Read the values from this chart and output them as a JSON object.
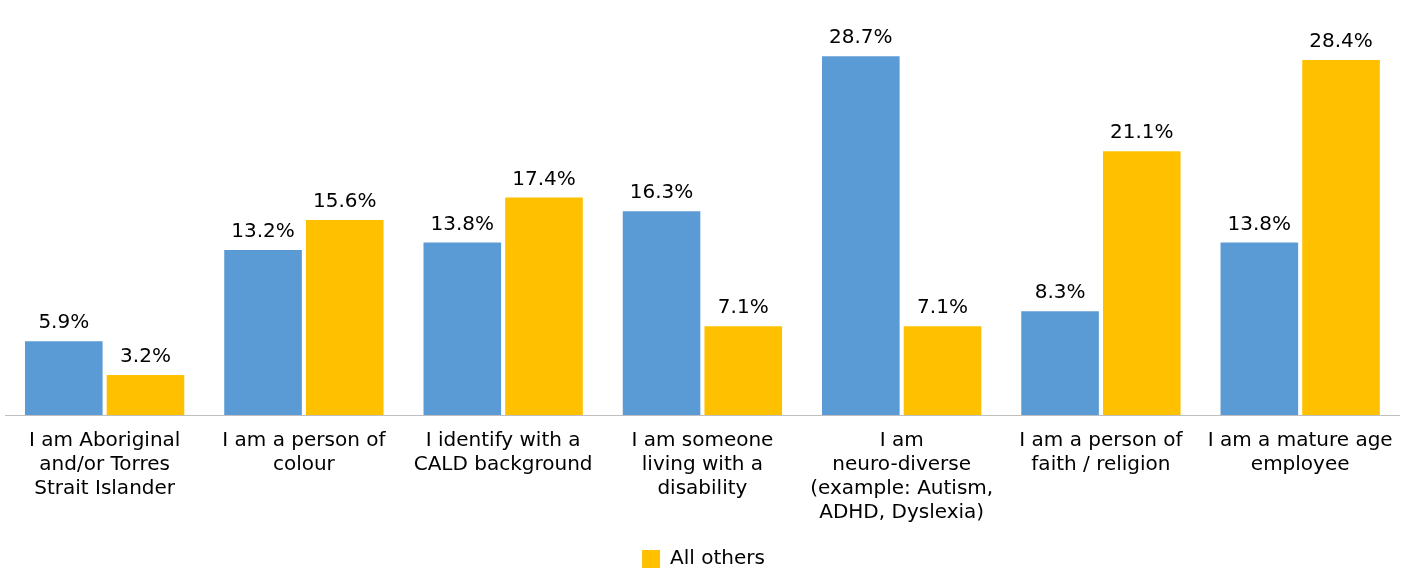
{
  "chart_data": {
    "type": "bar",
    "categories": [
      "I am Aboriginal and/or Torres Strait Islander",
      "I am a person of colour",
      "I identify with a CALD background",
      "I am someone living with a disability",
      "I am neuro-diverse (example: Autism, ADHD, Dyslexia)",
      "I am a person of faith / religion",
      "I am a mature age employee"
    ],
    "series": [
      {
        "color": "#5b9bd5",
        "values": [
          5.9,
          13.2,
          13.8,
          16.3,
          28.7,
          8.3,
          13.8
        ],
        "value_labels": [
          "5.9%",
          "13.2%",
          "13.8%",
          "16.3%",
          "28.7%",
          "8.3%",
          "13.8%"
        ]
      },
      {
        "name": "All others",
        "color": "#ffc000",
        "values": [
          3.2,
          15.6,
          17.4,
          7.1,
          7.1,
          21.1,
          28.4
        ],
        "value_labels": [
          "3.2%",
          "15.6%",
          "17.4%",
          "7.1%",
          "7.1%",
          "21.1%",
          "28.4%"
        ]
      }
    ],
    "legend": "bottom",
    "grid": false
  }
}
